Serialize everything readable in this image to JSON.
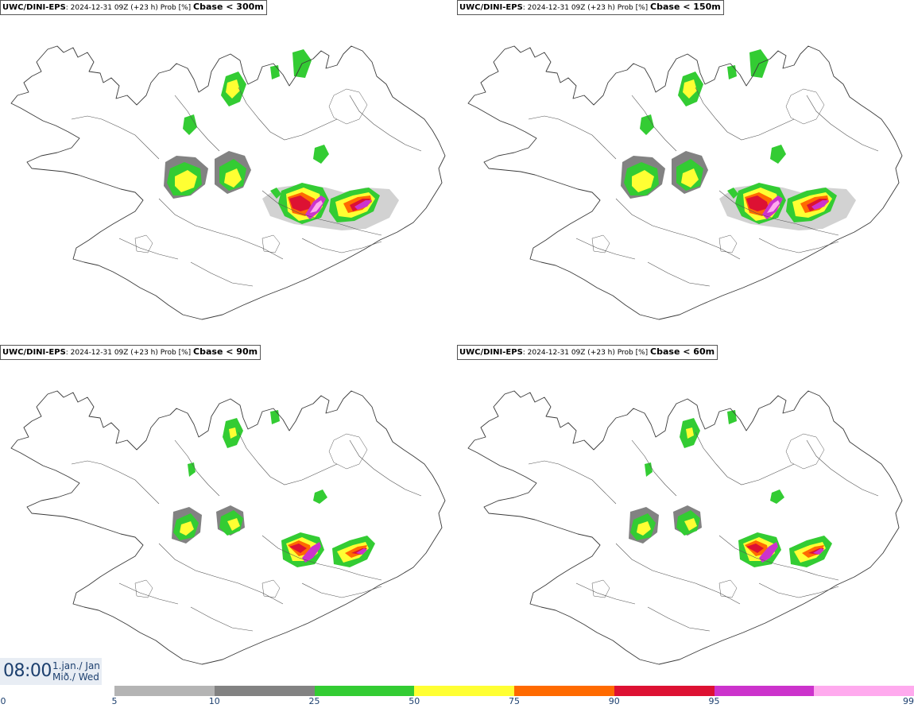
{
  "panels": [
    {
      "model": "UWC/DINI-EPS",
      "info": ": 2024-12-31 09Z (+23 h) Prob [%]",
      "threshold": "Cbase < 300m"
    },
    {
      "model": "UWC/DINI-EPS",
      "info": ": 2024-12-31 09Z (+23 h) Prob [%]",
      "threshold": "Cbase < 150m"
    },
    {
      "model": "UWC/DINI-EPS",
      "info": ": 2024-12-31 09Z (+23 h) Prob [%]",
      "threshold": "Cbase < 90m"
    },
    {
      "model": "UWC/DINI-EPS",
      "info": ": 2024-12-31 09Z (+23 h) Prob [%]",
      "threshold": "Cbase < 60m"
    }
  ],
  "time": {
    "clock": "08:00",
    "date_line1": "1.jan./ Jan",
    "date_line2": "Mið./ Wed"
  },
  "legend": {
    "labels": [
      "0",
      "5",
      "10",
      "25",
      "50",
      "75",
      "90",
      "95",
      "99"
    ],
    "colors": [
      "#b4b4b4",
      "#828282",
      "#33cc33",
      "#ffff33",
      "#ff6a00",
      "#dd1133",
      "#cc33cc",
      "#ffaaee"
    ]
  }
}
